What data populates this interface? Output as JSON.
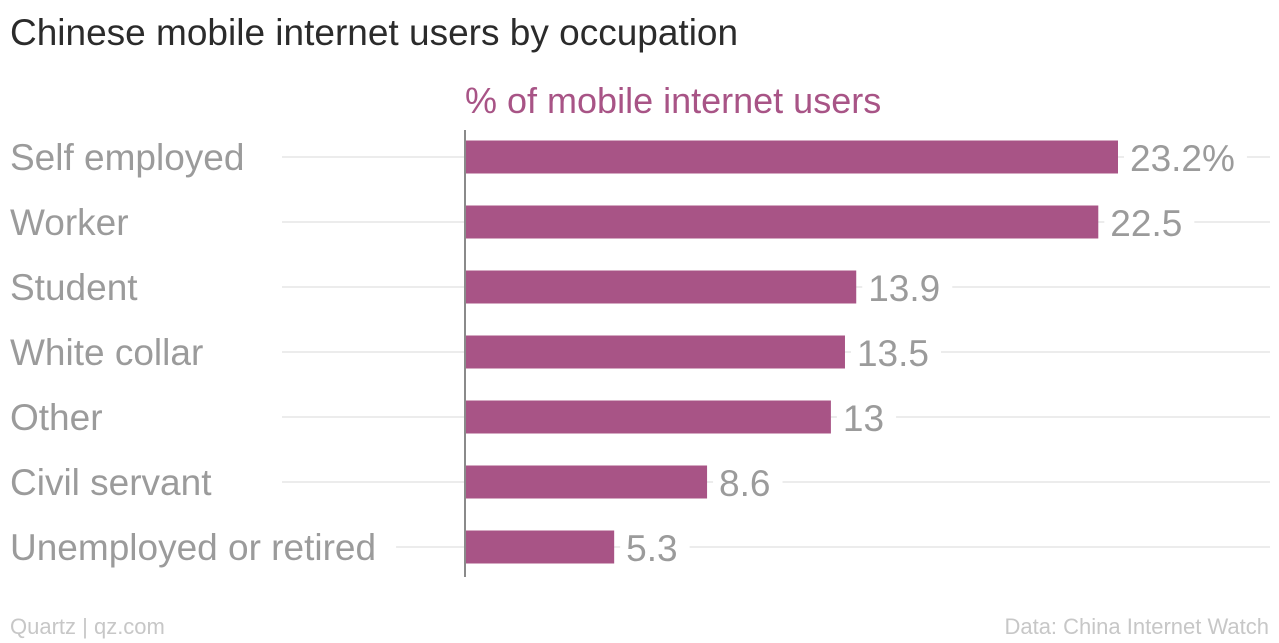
{
  "title": "Chinese mobile internet users by occupation",
  "source_left": "Quartz | qz.com",
  "source_right": "Data: China Internet Watch",
  "colors": {
    "bar": "#a85486",
    "subtitle": "#a85486",
    "category_label": "#9b9b9b",
    "value_label": "#9b9b9b",
    "gridline": "#e6e6e6",
    "axis": "#8a8a8a"
  },
  "chart_data": {
    "type": "bar",
    "orientation": "horizontal",
    "subtitle": "% of mobile internet users",
    "categories": [
      "Self employed",
      "Worker",
      "Student",
      "White collar",
      "Other",
      "Civil servant",
      "Unemployed or retired"
    ],
    "values": [
      23.2,
      22.5,
      13.9,
      13.5,
      13,
      8.6,
      5.3
    ],
    "value_labels": [
      "23.2%",
      "22.5",
      "13.9",
      "13.5",
      "13",
      "8.6",
      "5.3"
    ],
    "xlim": [
      0,
      24
    ],
    "grid": true,
    "legend": "none"
  }
}
